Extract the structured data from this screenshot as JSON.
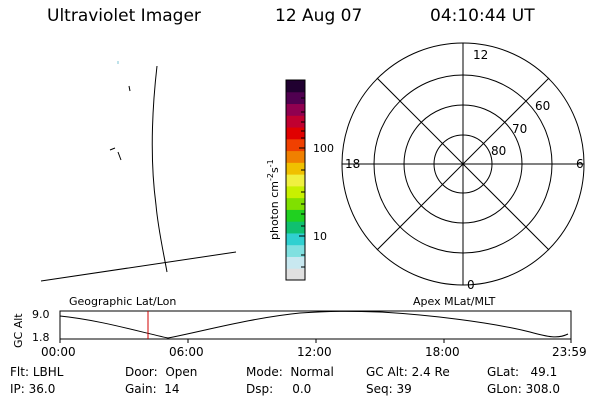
{
  "header": {
    "title": "Ultraviolet Imager",
    "date": "12 Aug 07",
    "time": "04:10:44 UT"
  },
  "colorbar": {
    "label": "photon cm",
    "exp1": "-2",
    "mid": "s",
    "exp2": "-1",
    "ticks": [
      "100",
      "10"
    ],
    "colors": [
      "#e0e0e0",
      "#c8e8f0",
      "#80e0e0",
      "#30d0d0",
      "#10c070",
      "#20d020",
      "#80e000",
      "#c8f000",
      "#f0f040",
      "#f0c000",
      "#f08000",
      "#f04000",
      "#e00000",
      "#c00030",
      "#900050",
      "#500050",
      "#200030"
    ]
  },
  "polar_plot": {
    "lat_labels": [
      "60",
      "70",
      "80"
    ],
    "mlt_labels": {
      "top": "12",
      "bottom": "0",
      "left": "18",
      "right": "6"
    }
  },
  "timeline": {
    "left_label": "Geographic Lat/Lon",
    "right_label": "Apex MLat/MLT",
    "axis_label": "GC Alt",
    "y_ticks": [
      "9.0",
      "1.8"
    ],
    "x_ticks": [
      "00:00",
      "06:00",
      "12:00",
      "18:00",
      "23:59"
    ],
    "current_time_marker": "04:10:44"
  },
  "status": {
    "flt_label": "Flt:",
    "flt_value": "LBHL",
    "ip_label": "IP:",
    "ip_value": "36.0",
    "door_label": "Door:",
    "door_value": "Open",
    "gain_label": "Gain:",
    "gain_value": "14",
    "mode_label": "Mode:",
    "mode_value": "Normal",
    "dsp_label": "Dsp:",
    "dsp_value": "0.0",
    "gcalt_label": "GC Alt:",
    "gcalt_value": "2.4 Re",
    "seq_label": "Seq:",
    "seq_value": "39",
    "glat_label": "GLat:",
    "glat_value": "49.1",
    "glon_label": "GLon:",
    "glon_value": "308.0"
  }
}
